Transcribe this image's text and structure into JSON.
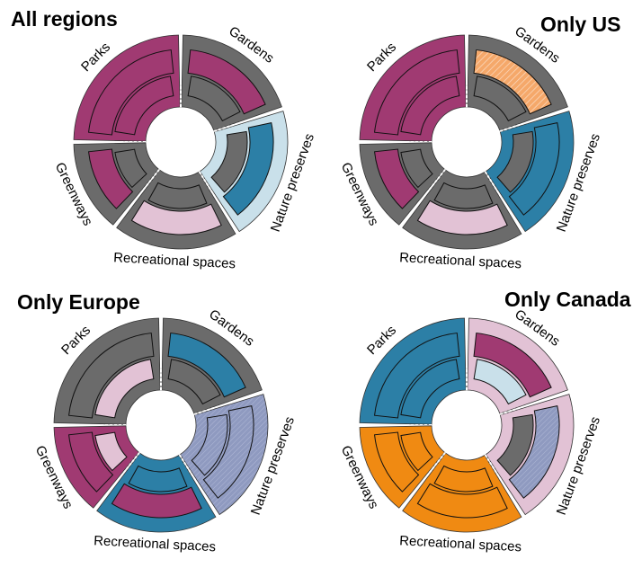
{
  "palette": {
    "gray": "#6b6b6b",
    "magenta": "#a03a72",
    "pink": "#e2c2d5",
    "lightblue": "#c9e0ea",
    "blue": "#2c7fa6",
    "orange": "#f08a12",
    "orange_hatched": "#f5a86a",
    "slate": "#8f9ac0"
  },
  "panels": [
    {
      "title": "All regions",
      "segments": [
        {
          "label": "Parks",
          "outer": "magenta",
          "band": "magenta",
          "inner": "magenta"
        },
        {
          "label": "Gardens",
          "outer": "gray",
          "band": "magenta",
          "inner": "gray"
        },
        {
          "label": "Nature preserves",
          "outer": "lightblue",
          "band": "blue",
          "inner": "gray"
        },
        {
          "label": "Recreational spaces",
          "outer": "gray",
          "band": "pink",
          "inner": "gray"
        },
        {
          "label": "Greenways",
          "outer": "gray",
          "band": "magenta",
          "inner": "gray"
        }
      ]
    },
    {
      "title": "Only US",
      "segments": [
        {
          "label": "Parks",
          "outer": "magenta",
          "band": "magenta",
          "inner": "magenta"
        },
        {
          "label": "Gardens",
          "outer": "gray",
          "band": "orange_hatched",
          "inner": "gray"
        },
        {
          "label": "Nature preserves",
          "outer": "blue",
          "band": "blue",
          "inner": "gray"
        },
        {
          "label": "Recreational spaces",
          "outer": "gray",
          "band": "pink",
          "inner": "gray"
        },
        {
          "label": "Greenways",
          "outer": "gray",
          "band": "magenta",
          "inner": "gray"
        }
      ]
    },
    {
      "title": "Only Europe",
      "segments": [
        {
          "label": "Parks",
          "outer": "gray",
          "band": "gray",
          "inner": "pink"
        },
        {
          "label": "Gardens",
          "outer": "gray",
          "band": "blue",
          "inner": "gray"
        },
        {
          "label": "Nature preserves",
          "outer": "slate",
          "band": "slate",
          "inner": "slate"
        },
        {
          "label": "Recreational spaces",
          "outer": "blue",
          "band": "magenta",
          "inner": "blue"
        },
        {
          "label": "Greenways",
          "outer": "magenta",
          "band": "magenta",
          "inner": "pink"
        }
      ]
    },
    {
      "title": "Only Canada",
      "segments": [
        {
          "label": "Parks",
          "outer": "blue",
          "band": "blue",
          "inner": "blue"
        },
        {
          "label": "Gardens",
          "outer": "pink",
          "band": "magenta",
          "inner": "lightblue"
        },
        {
          "label": "Nature preserves",
          "outer": "pink",
          "band": "slate",
          "inner": "gray"
        },
        {
          "label": "Recreational spaces",
          "outer": "orange",
          "band": "orange",
          "inner": "orange"
        },
        {
          "label": "Greenways",
          "outer": "orange",
          "band": "orange",
          "inner": "orange"
        }
      ]
    }
  ]
}
